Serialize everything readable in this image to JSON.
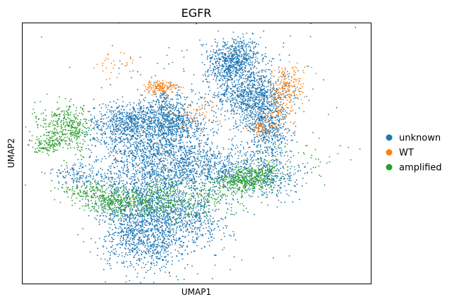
{
  "chart_data": {
    "type": "scatter",
    "title": "EGFR",
    "xlabel": "UMAP1",
    "ylabel": "UMAP2",
    "xlim": [
      -6.4,
      8.2
    ],
    "ylim": [
      -5.4,
      7.6
    ],
    "xticks": false,
    "yticks": false,
    "grid": false,
    "legend_position": "right-outside",
    "marker_size_px": 1.4,
    "series": [
      {
        "name": "unknown",
        "color": "#1f77b4",
        "clusters": [
          {
            "cx": 2.5,
            "cy": 6.0,
            "sx": 0.55,
            "sy": 0.45,
            "n": 420
          },
          {
            "cx": 2.3,
            "cy": 5.3,
            "sx": 0.45,
            "sy": 0.35,
            "n": 260
          },
          {
            "cx": 3.2,
            "cy": 4.0,
            "sx": 0.8,
            "sy": 0.7,
            "n": 900
          },
          {
            "cx": 3.8,
            "cy": 2.6,
            "sx": 0.45,
            "sy": 0.55,
            "n": 300
          },
          {
            "cx": 4.0,
            "cy": 1.6,
            "sx": 0.35,
            "sy": 0.5,
            "n": 120
          },
          {
            "cx": -2.0,
            "cy": 2.6,
            "sx": 0.9,
            "sy": 0.5,
            "n": 650
          },
          {
            "cx": -0.4,
            "cy": 3.0,
            "sx": 0.6,
            "sy": 0.55,
            "n": 500
          },
          {
            "cx": 0.2,
            "cy": 2.3,
            "sx": 0.6,
            "sy": 0.4,
            "n": 250
          },
          {
            "cx": -0.8,
            "cy": 1.2,
            "sx": 1.2,
            "sy": 0.6,
            "n": 700
          },
          {
            "cx": 1.0,
            "cy": 0.3,
            "sx": 1.8,
            "sy": 0.6,
            "n": 900
          },
          {
            "cx": 3.8,
            "cy": 0.0,
            "sx": 0.7,
            "sy": 0.55,
            "n": 260
          },
          {
            "cx": -1.0,
            "cy": -1.2,
            "sx": 1.3,
            "sy": 0.8,
            "n": 850
          },
          {
            "cx": -1.3,
            "cy": -3.0,
            "sx": 0.85,
            "sy": 0.9,
            "n": 900
          },
          {
            "cx": 0.6,
            "cy": -2.2,
            "sx": 0.9,
            "sy": 0.8,
            "n": 400
          },
          {
            "cx": -3.8,
            "cy": 0.0,
            "sx": 0.8,
            "sy": 0.3,
            "n": 150
          },
          {
            "cx": 1.8,
            "cy": 3.5,
            "sx": 2.8,
            "sy": 3.0,
            "n": 220
          }
        ]
      },
      {
        "name": "WT",
        "color": "#ff7f0e",
        "clusters": [
          {
            "cx": -0.6,
            "cy": 4.4,
            "sx": 0.35,
            "sy": 0.18,
            "n": 140
          },
          {
            "cx": -2.7,
            "cy": 5.5,
            "sx": 0.5,
            "sy": 0.45,
            "n": 30
          },
          {
            "cx": 0.8,
            "cy": 3.0,
            "sx": 0.55,
            "sy": 0.35,
            "n": 60
          },
          {
            "cx": 4.6,
            "cy": 4.4,
            "sx": 0.4,
            "sy": 0.4,
            "n": 130
          },
          {
            "cx": 4.4,
            "cy": 3.2,
            "sx": 0.3,
            "sy": 0.5,
            "n": 90
          },
          {
            "cx": 3.6,
            "cy": 2.3,
            "sx": 0.22,
            "sy": 0.25,
            "n": 60
          },
          {
            "cx": 4.9,
            "cy": 5.0,
            "sx": 0.5,
            "sy": 0.4,
            "n": 40
          }
        ]
      },
      {
        "name": "amplified",
        "color": "#2ca02c",
        "clusters": [
          {
            "cx": -4.4,
            "cy": 2.3,
            "sx": 0.45,
            "sy": 0.55,
            "n": 330
          },
          {
            "cx": -5.4,
            "cy": 1.6,
            "sx": 0.35,
            "sy": 0.22,
            "n": 100
          },
          {
            "cx": -5.4,
            "cy": 2.5,
            "sx": 0.4,
            "sy": 0.5,
            "n": 60
          },
          {
            "cx": -2.4,
            "cy": -1.3,
            "sx": 0.6,
            "sy": 0.35,
            "n": 280
          },
          {
            "cx": -3.8,
            "cy": -0.8,
            "sx": 0.5,
            "sy": 0.3,
            "n": 120
          },
          {
            "cx": -0.7,
            "cy": -1.3,
            "sx": 0.8,
            "sy": 0.5,
            "n": 250
          },
          {
            "cx": 1.3,
            "cy": -1.0,
            "sx": 0.9,
            "sy": 0.55,
            "n": 150
          },
          {
            "cx": 2.8,
            "cy": -0.3,
            "sx": 0.5,
            "sy": 0.3,
            "n": 250
          },
          {
            "cx": 3.6,
            "cy": 0.1,
            "sx": 0.5,
            "sy": 0.3,
            "n": 160
          },
          {
            "cx": 5.2,
            "cy": 0.9,
            "sx": 1.0,
            "sy": 0.6,
            "n": 50
          }
        ]
      }
    ]
  }
}
